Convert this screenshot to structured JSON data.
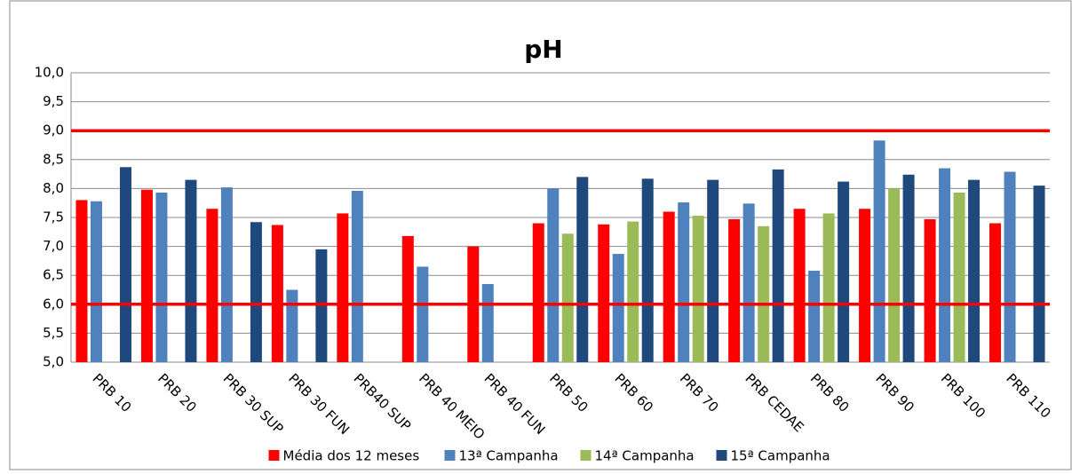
{
  "chart_data": {
    "type": "bar",
    "title": "pH",
    "categories": [
      "PRB 10",
      "PRB 20",
      "PRB 30 SUP",
      "PRB 30 FUN",
      "PRB40 SUP",
      "PRB 40 MEIO",
      "PRB 40 FUN",
      "PRB 50",
      "PRB 60",
      "PRB 70",
      "PRB CEDAE",
      "PRB 80",
      "PRB 90",
      "PRB 100",
      "PRB 110"
    ],
    "series": [
      {
        "name": "Média dos 12 meses",
        "color": "#ff0000",
        "values": [
          7.8,
          7.98,
          7.65,
          7.37,
          7.57,
          7.18,
          7.0,
          7.4,
          7.38,
          7.6,
          7.47,
          7.65,
          7.65,
          7.47,
          7.4
        ]
      },
      {
        "name": "13ª Campanha",
        "color": "#4f81bd",
        "values": [
          7.78,
          7.93,
          8.02,
          6.25,
          7.96,
          6.65,
          6.35,
          8.0,
          6.87,
          7.76,
          7.74,
          6.58,
          8.83,
          8.35,
          8.29
        ]
      },
      {
        "name": "14ª Campanha",
        "color": "#9bbb59",
        "values": [
          null,
          null,
          null,
          null,
          null,
          null,
          null,
          7.22,
          7.43,
          7.53,
          7.35,
          7.57,
          8.0,
          7.93,
          null
        ]
      },
      {
        "name": "15ª Campanha",
        "color": "#1f497d",
        "values": [
          8.37,
          8.15,
          7.42,
          6.95,
          null,
          null,
          null,
          8.2,
          8.17,
          8.15,
          8.33,
          8.12,
          8.24,
          8.15,
          8.05
        ]
      }
    ],
    "ylim": [
      5,
      10
    ],
    "yticks": [
      {
        "value": 5,
        "label": "5,0"
      },
      {
        "value": 5.5,
        "label": "5,5"
      },
      {
        "value": 6,
        "label": "6,0"
      },
      {
        "value": 6.5,
        "label": "6,5"
      },
      {
        "value": 7,
        "label": "7,0"
      },
      {
        "value": 7.5,
        "label": "7,5"
      },
      {
        "value": 8,
        "label": "8,0"
      },
      {
        "value": 8.5,
        "label": "8,5"
      },
      {
        "value": 9,
        "label": "9,0"
      },
      {
        "value": 9.5,
        "label": "9,5"
      },
      {
        "value": 10,
        "label": "10,0"
      }
    ],
    "grid": true,
    "legend": "bottom",
    "reference_lines": [
      {
        "value": 9,
        "color": "#ff0000"
      },
      {
        "value": 6,
        "color": "#ff0000"
      }
    ]
  }
}
